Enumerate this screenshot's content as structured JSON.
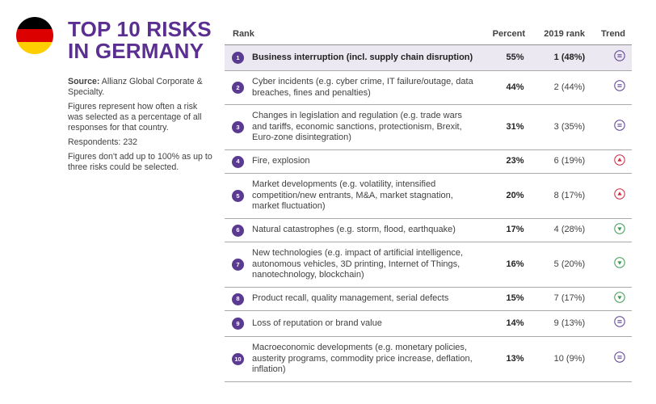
{
  "header": {
    "title": "TOP 10 RISKS\nIN GERMANY",
    "flag_colors": [
      "#000000",
      "#dd0000",
      "#ffce00"
    ]
  },
  "sidebar": {
    "source_label": "Source:",
    "source_text": " Allianz Global Corporate & Specialty.",
    "note1": "Figures represent how often a risk was selected as a percentage of all responses for that country.",
    "respondents": "Respondents: 232",
    "note2": "Figures don't add up to 100% as up to three risks could be selected."
  },
  "colors": {
    "accent": "#5b2f91",
    "up": "#d0263d",
    "down": "#3f9a52",
    "same": "#5b3a92",
    "highlight": "#ebe8f1"
  },
  "chart_data": {
    "type": "table",
    "columns": [
      "Rank",
      "Percent",
      "2019 rank",
      "Trend"
    ],
    "rows": [
      {
        "rank": "1",
        "risk": "Business interruption (incl. supply chain disruption)",
        "percent": "55%",
        "prev": "1 (48%)",
        "trend": "same"
      },
      {
        "rank": "2",
        "risk": "Cyber incidents (e.g. cyber crime, IT failure/outage, data breaches, fines and penalties)",
        "percent": "44%",
        "prev": "2 (44%)",
        "trend": "same"
      },
      {
        "rank": "3",
        "risk": "Changes in legislation and regulation (e.g. trade wars and tariffs, economic sanctions, protectionism, Brexit, Euro-zone disintegration)",
        "percent": "31%",
        "prev": "3 (35%)",
        "trend": "same"
      },
      {
        "rank": "4",
        "risk": "Fire, explosion",
        "percent": "23%",
        "prev": "6 (19%)",
        "trend": "up"
      },
      {
        "rank": "5",
        "risk": "Market developments (e.g. volatility, intensified competition/new entrants, M&A, market stagnation, market fluctuation)",
        "percent": "20%",
        "prev": "8 (17%)",
        "trend": "up"
      },
      {
        "rank": "6",
        "risk": "Natural catastrophes (e.g. storm, flood, earthquake)",
        "percent": "17%",
        "prev": "4 (28%)",
        "trend": "down"
      },
      {
        "rank": "7",
        "risk": "New technologies (e.g. impact of artificial intelligence, autonomous vehicles, 3D printing, Internet of Things, nanotechnology, blockchain)",
        "percent": "16%",
        "prev": "5 (20%)",
        "trend": "down"
      },
      {
        "rank": "8",
        "risk": "Product recall, quality management, serial defects",
        "percent": "15%",
        "prev": "7 (17%)",
        "trend": "down"
      },
      {
        "rank": "9",
        "risk": "Loss of reputation or brand value",
        "percent": "14%",
        "prev": "9 (13%)",
        "trend": "same"
      },
      {
        "rank": "10",
        "risk": "Macroeconomic developments (e.g. monetary policies, austerity programs, commodity price increase, deflation, inflation)",
        "percent": "13%",
        "prev": "10 (9%)",
        "trend": "same"
      }
    ]
  }
}
